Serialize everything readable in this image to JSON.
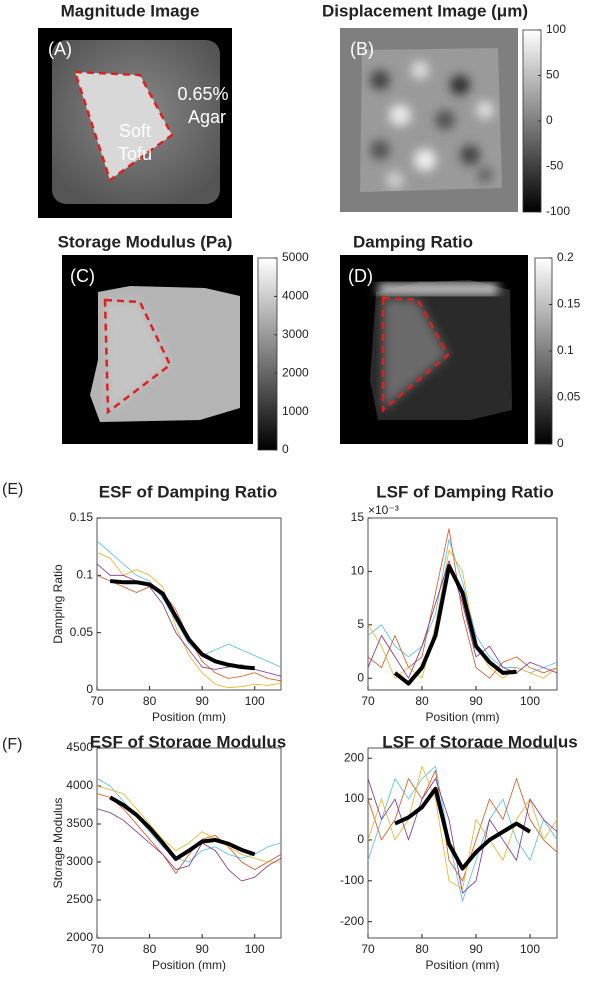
{
  "images": [
    {
      "title": "Magnitude Image",
      "label": "(A)",
      "annotations": [
        "Soft",
        "Tofu",
        "0.65%",
        "Agar"
      ]
    },
    {
      "title": "Displacement Image (μm)",
      "label": "(B)",
      "clim": [
        -100,
        100
      ],
      "cticks": [
        100,
        50,
        0,
        -50,
        -100
      ]
    },
    {
      "title": "Storage Modulus (Pa)",
      "label": "(C)",
      "clim": [
        0,
        5000
      ],
      "cticks": [
        5000,
        4000,
        3000,
        2000,
        1000,
        0
      ]
    },
    {
      "title": "Damping Ratio",
      "label": "(D)",
      "clim": [
        0,
        0.2
      ],
      "cticks": [
        0.2,
        0.15,
        0.1,
        0.05,
        0
      ]
    }
  ],
  "row_labels": [
    "(E)",
    "(F)"
  ],
  "chart_data": [
    {
      "type": "line",
      "title": "ESF of Damping Ratio",
      "ylabel": "Damping Ratio",
      "xlabel": "Position (mm)",
      "x": [
        70,
        72.5,
        75,
        77.5,
        80,
        82.5,
        85,
        87.5,
        90,
        92.5,
        95,
        97.5,
        100,
        102.5,
        105
      ],
      "xlim": [
        70,
        105
      ],
      "xticks": [
        70,
        80,
        90,
        100
      ],
      "ylim": [
        0,
        0.15
      ],
      "yticks": [
        0,
        0.05,
        0.1,
        0.15
      ],
      "series": [
        {
          "color": "#4dbeee",
          "line_width": 0.8,
          "values": [
            0.13,
            0.12,
            0.11,
            0.1,
            0.095,
            0.08,
            0.06,
            0.04,
            0.03,
            0.035,
            0.04,
            0.035,
            0.03,
            0.025,
            0.02
          ]
        },
        {
          "color": "#d95319",
          "line_width": 0.8,
          "values": [
            0.1,
            0.095,
            0.09,
            0.085,
            0.09,
            0.085,
            0.07,
            0.045,
            0.025,
            0.015,
            0.01,
            0.012,
            0.015,
            0.01,
            0.008
          ]
        },
        {
          "color": "#edb120",
          "line_width": 0.8,
          "values": [
            0.12,
            0.115,
            0.1,
            0.105,
            0.1,
            0.09,
            0.055,
            0.03,
            0.015,
            0.005,
            0.002,
            0.003,
            0.005,
            0.004,
            0.006
          ]
        },
        {
          "color": "#7e2f8e",
          "line_width": 0.8,
          "values": [
            0.11,
            0.1,
            0.1,
            0.095,
            0.09,
            0.075,
            0.05,
            0.035,
            0.02,
            0.018,
            0.02,
            0.022,
            0.018,
            0.015,
            0.012
          ]
        },
        {
          "color": "#000000",
          "line_width": 4,
          "values": [
            null,
            0.095,
            0.094,
            0.094,
            0.092,
            0.084,
            0.064,
            0.044,
            0.031,
            0.025,
            0.022,
            0.02,
            0.019,
            null,
            null
          ]
        }
      ]
    },
    {
      "type": "line",
      "title": "LSF of Damping Ratio",
      "xlabel": "Position (mm)",
      "multiplier": "×10⁻³",
      "x": [
        70,
        72.5,
        75,
        77.5,
        80,
        82.5,
        85,
        87.5,
        90,
        92.5,
        95,
        97.5,
        100,
        102.5,
        105
      ],
      "xlim": [
        70,
        105
      ],
      "xticks": [
        70,
        80,
        90,
        100
      ],
      "ylim": [
        -1.1,
        15
      ],
      "yticks": [
        0,
        5,
        10,
        15
      ],
      "series": [
        {
          "color": "#4dbeee",
          "line_width": 0.8,
          "values": [
            4,
            5,
            3,
            2,
            3,
            6,
            13,
            9,
            4,
            2,
            1,
            1,
            0.5,
            1,
            1.5
          ]
        },
        {
          "color": "#d95319",
          "line_width": 0.8,
          "values": [
            2,
            1,
            4,
            1,
            2,
            8,
            14,
            6,
            1,
            0,
            1.5,
            2,
            1,
            0.5,
            1
          ]
        },
        {
          "color": "#edb120",
          "line_width": 0.8,
          "values": [
            5,
            3,
            0,
            1,
            0,
            5,
            12,
            10,
            3,
            1,
            0,
            1,
            0.5,
            0,
            1
          ]
        },
        {
          "color": "#7e2f8e",
          "line_width": 0.8,
          "values": [
            1,
            4,
            2,
            0,
            3,
            7,
            11,
            7,
            2,
            3,
            1,
            0.5,
            1.5,
            1,
            0.5
          ]
        },
        {
          "color": "#000000",
          "line_width": 4,
          "values": [
            null,
            null,
            0.5,
            -0.5,
            1,
            4,
            10.5,
            8,
            3,
            1.5,
            0.5,
            0.6,
            null,
            null,
            null
          ]
        }
      ]
    },
    {
      "type": "line",
      "title": "ESF of Storage Modulus",
      "ylabel": "Storage Modulus",
      "xlabel": "Position (mm)",
      "x": [
        70,
        72.5,
        75,
        77.5,
        80,
        82.5,
        85,
        87.5,
        90,
        92.5,
        95,
        97.5,
        100,
        102.5,
        105
      ],
      "xlim": [
        70,
        105
      ],
      "xticks": [
        70,
        80,
        90,
        100
      ],
      "ylim": [
        2000,
        4500
      ],
      "yticks": [
        2000,
        2500,
        3000,
        3500,
        4000,
        4500
      ],
      "series": [
        {
          "color": "#4dbeee",
          "line_width": 0.8,
          "values": [
            4100,
            4000,
            3800,
            3600,
            3400,
            3200,
            3050,
            3000,
            3150,
            3200,
            3100,
            3050,
            3100,
            3200,
            3250
          ]
        },
        {
          "color": "#d95319",
          "line_width": 0.8,
          "values": [
            3900,
            3850,
            3700,
            3500,
            3300,
            3100,
            2850,
            3100,
            3300,
            3350,
            3200,
            3000,
            2900,
            3000,
            3100
          ]
        },
        {
          "color": "#edb120",
          "line_width": 0.8,
          "values": [
            4000,
            3950,
            3900,
            3700,
            3500,
            3300,
            3150,
            3250,
            3400,
            3300,
            3200,
            3100,
            3050,
            3000,
            3000
          ]
        },
        {
          "color": "#7e2f8e",
          "line_width": 0.8,
          "values": [
            3700,
            3650,
            3550,
            3400,
            3250,
            3100,
            2900,
            2950,
            3250,
            3150,
            2900,
            2750,
            2800,
            2950,
            3050
          ]
        },
        {
          "color": "#000000",
          "line_width": 4,
          "values": [
            null,
            3850,
            3750,
            3620,
            3450,
            3250,
            3040,
            3150,
            3270,
            3290,
            3240,
            3160,
            3100,
            null,
            null
          ]
        }
      ]
    },
    {
      "type": "line",
      "title": "LSF of Storage Modulus",
      "xlabel": "Position (mm)",
      "x": [
        70,
        72.5,
        75,
        77.5,
        80,
        82.5,
        85,
        87.5,
        90,
        92.5,
        95,
        97.5,
        100,
        102.5,
        105
      ],
      "xlim": [
        70,
        105
      ],
      "xticks": [
        70,
        80,
        90,
        100
      ],
      "ylim": [
        -240,
        225
      ],
      "yticks": [
        -200,
        -100,
        0,
        100,
        200
      ],
      "series": [
        {
          "color": "#4dbeee",
          "line_width": 0.8,
          "values": [
            -50,
            50,
            150,
            100,
            150,
            180,
            0,
            -150,
            -50,
            50,
            100,
            0,
            -50,
            50,
            0
          ]
        },
        {
          "color": "#d95319",
          "line_width": 0.8,
          "values": [
            100,
            0,
            50,
            150,
            100,
            170,
            -50,
            -100,
            0,
            100,
            50,
            150,
            50,
            0,
            -30
          ]
        },
        {
          "color": "#edb120",
          "line_width": 0.8,
          "values": [
            0,
            100,
            0,
            50,
            180,
            100,
            -100,
            -120,
            50,
            0,
            -50,
            50,
            100,
            0,
            50
          ]
        },
        {
          "color": "#7e2f8e",
          "line_width": 0.8,
          "values": [
            150,
            50,
            100,
            0,
            100,
            150,
            50,
            -130,
            -100,
            50,
            0,
            -50,
            100,
            50,
            20
          ]
        },
        {
          "color": "#000000",
          "line_width": 4,
          "values": [
            null,
            null,
            40,
            55,
            80,
            125,
            -10,
            -70,
            -30,
            0,
            20,
            40,
            20,
            null,
            null
          ]
        }
      ]
    }
  ]
}
